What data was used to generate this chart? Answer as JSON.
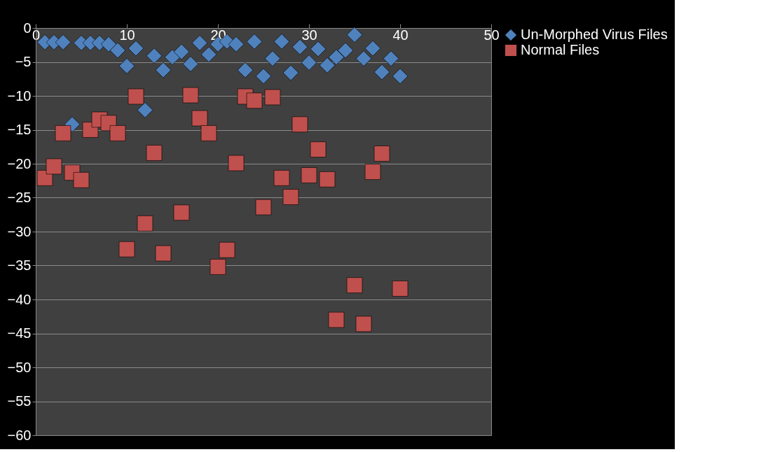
{
  "chart_data": {
    "type": "scatter",
    "xlim": [
      0,
      50
    ],
    "xticks": [
      0,
      10,
      20,
      30,
      40,
      50
    ],
    "ylim": [
      -60,
      0
    ],
    "yticks": [
      -60,
      -55,
      -50,
      -45,
      -40,
      -35,
      -30,
      -25,
      -20,
      -15,
      -10,
      -5,
      0
    ],
    "grid": "y",
    "legend": "right",
    "series": [
      {
        "name": "Un-Morphed Virus Files",
        "color": "#4f81bd",
        "marker": "diamond",
        "x": [
          1,
          2,
          3,
          4,
          5,
          6,
          7,
          8,
          9,
          10,
          11,
          12,
          13,
          14,
          15,
          16,
          17,
          18,
          19,
          20,
          21,
          22,
          23,
          24,
          25,
          26,
          27,
          28,
          29,
          30,
          31,
          32,
          33,
          34,
          35,
          36,
          37,
          38,
          39,
          40
        ],
        "values": [
          -2.1,
          -2.1,
          -2.1,
          -14.2,
          -2.2,
          -2.2,
          -2.2,
          -2.4,
          -3.3,
          -5.6,
          -3.0,
          -12.1,
          -4.1,
          -6.2,
          -4.3,
          -3.5,
          -5.3,
          -2.2,
          -3.9,
          -2.4,
          -2.0,
          -2.4,
          -6.2,
          -2.0,
          -7.1,
          -4.5,
          -2.0,
          -6.6,
          -2.8,
          -5.1,
          -3.1,
          -5.5,
          -4.3,
          -3.3,
          -1.0,
          -4.5,
          -3.0,
          -6.5,
          -4.5,
          -7.1
        ]
      },
      {
        "name": "Normal Files",
        "color": "#c0504d",
        "marker": "square",
        "x": [
          1,
          2,
          3,
          4,
          5,
          6,
          7,
          8,
          9,
          10,
          11,
          12,
          13,
          14,
          16,
          17,
          18,
          19,
          20,
          21,
          22,
          23,
          24,
          25,
          26,
          27,
          28,
          29,
          30,
          31,
          32,
          33,
          35,
          36,
          37,
          38,
          40
        ],
        "values": [
          -22.1,
          -20.4,
          -15.5,
          -21.3,
          -22.4,
          -15.0,
          -13.5,
          -14.0,
          -15.5,
          -32.6,
          -10.1,
          -28.8,
          -18.4,
          -33.2,
          -27.2,
          -9.9,
          -13.3,
          -15.5,
          -35.2,
          -32.7,
          -19.9,
          -10.1,
          -10.7,
          -26.4,
          -10.2,
          -22.1,
          -24.9,
          -14.2,
          -21.7,
          -17.9,
          -22.3,
          -43.0,
          -37.9,
          -43.6,
          -21.2,
          -18.5,
          -38.4
        ]
      }
    ]
  }
}
